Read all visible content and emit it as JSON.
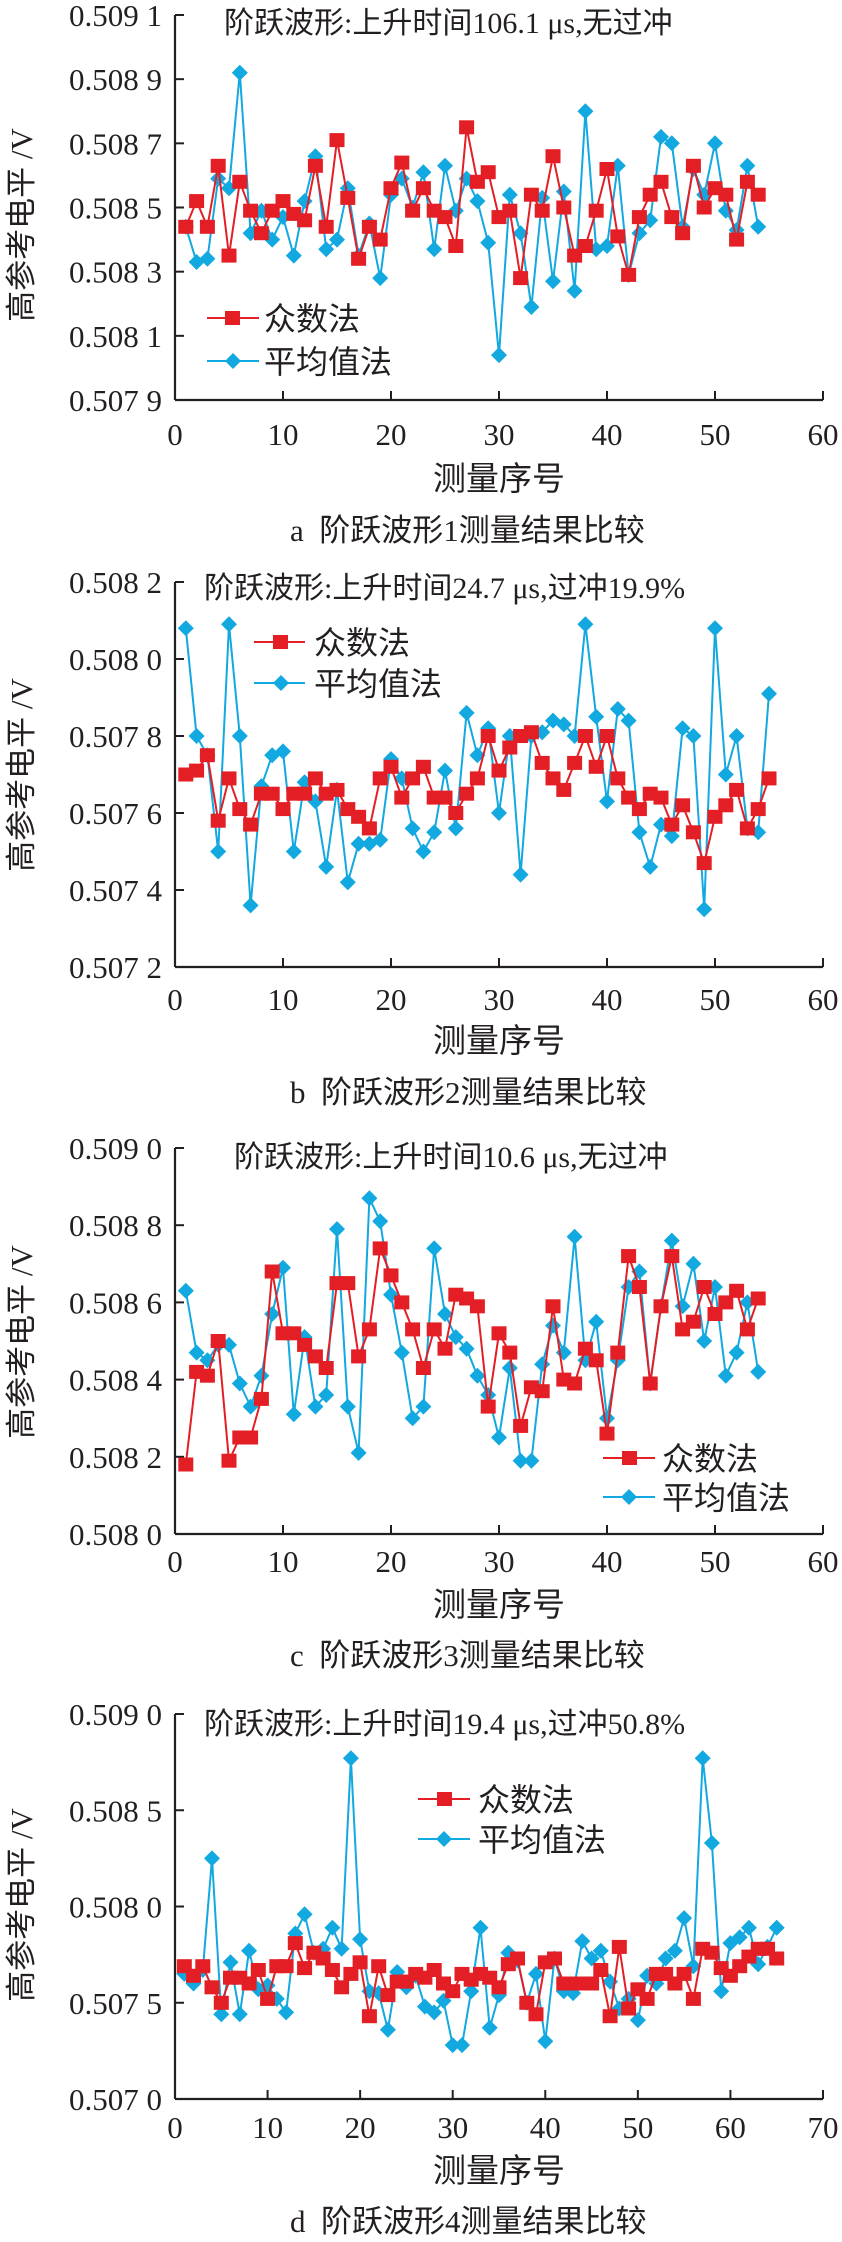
{
  "colors": {
    "mode_method": "#e31e24",
    "mean_method": "#12a8e0",
    "axis": "#231f20"
  },
  "chart_data": [
    {
      "type": "line",
      "panel_caption": "a  阶跃波形1测量结果比较",
      "title": "阶跃波形:上升时间106.1 μs,无过冲",
      "xlabel": "测量序号",
      "ylabel": "高参考电平 /V",
      "xlim": [
        0,
        60
      ],
      "ylim": [
        0.5079,
        0.5091
      ],
      "xticks": [
        0,
        10,
        20,
        30,
        40,
        50,
        60
      ],
      "xtick_labels": [
        "0",
        "10",
        "20",
        "30",
        "40",
        "50",
        "60"
      ],
      "yticks": [
        0.5079,
        0.5081,
        0.5083,
        0.5085,
        0.5087,
        0.5089,
        0.5091
      ],
      "ytick_labels": [
        "0.507 9",
        "0.508 1",
        "0.508 3",
        "0.508 5",
        "0.508 7",
        "0.508 9",
        "0.509 1"
      ],
      "legend_position": "lower-left",
      "grid": false,
      "x_start": 1,
      "series": [
        {
          "name": "众数法",
          "marker": "square",
          "color": "#e31e24",
          "values": [
            0.50844,
            0.50852,
            0.50844,
            0.50863,
            0.50835,
            0.50858,
            0.50849,
            0.50842,
            0.50849,
            0.50852,
            0.50848,
            0.50846,
            0.50863,
            0.50844,
            0.50871,
            0.50853,
            0.50834,
            0.50844,
            0.5084,
            0.50856,
            0.50864,
            0.50849,
            0.50856,
            0.50849,
            0.50847,
            0.50838,
            0.50875,
            0.50858,
            0.50861,
            0.50847,
            0.50849,
            0.50828,
            0.50854,
            0.50849,
            0.50866,
            0.5085,
            0.50835,
            0.50838,
            0.50849,
            0.50862,
            0.50841,
            0.50829,
            0.50847,
            0.50854,
            0.50858,
            0.50847,
            0.50842,
            0.50863,
            0.5085,
            0.50856,
            0.50854,
            0.5084,
            0.50858,
            0.50854
          ]
        },
        {
          "name": "平均值法",
          "marker": "diamond",
          "color": "#12a8e0",
          "values": [
            0.50844,
            0.50833,
            0.50834,
            0.50859,
            0.50856,
            0.50892,
            0.50842,
            0.50849,
            0.5084,
            0.50847,
            0.50835,
            0.50852,
            0.50866,
            0.50837,
            0.5084,
            0.50856,
            0.50835,
            0.50845,
            0.50828,
            0.50854,
            0.50859,
            0.5085,
            0.50861,
            0.50837,
            0.50863,
            0.50849,
            0.50859,
            0.50852,
            0.50839,
            0.50804,
            0.50854,
            0.50842,
            0.50819,
            0.50853,
            0.50827,
            0.50855,
            0.50824,
            0.5088,
            0.50837,
            0.50838,
            0.50863,
            0.50829,
            0.50842,
            0.50846,
            0.50872,
            0.5087,
            0.50844,
            0.50862,
            0.50854,
            0.5087,
            0.50849,
            0.50843,
            0.50863,
            0.50844
          ]
        }
      ]
    },
    {
      "type": "line",
      "panel_caption": "b  阶跃波形2测量结果比较",
      "title": "阶跃波形:上升时间24.7 μs,过冲19.9%",
      "xlabel": "测量序号",
      "ylabel": "高参考电平 /V",
      "xlim": [
        0,
        60
      ],
      "ylim": [
        0.5072,
        0.5082
      ],
      "xticks": [
        0,
        10,
        20,
        30,
        40,
        50,
        60
      ],
      "xtick_labels": [
        "0",
        "10",
        "20",
        "30",
        "40",
        "50",
        "60"
      ],
      "yticks": [
        0.5072,
        0.5074,
        0.5076,
        0.5078,
        0.508,
        0.5082
      ],
      "ytick_labels": [
        "0.507 2",
        "0.507 4",
        "0.507 6",
        "0.507 8",
        "0.508 0",
        "0.508 2"
      ],
      "legend_position": "top-left",
      "grid": false,
      "x_start": 1,
      "series": [
        {
          "name": "众数法",
          "marker": "square",
          "color": "#e31e24",
          "values": [
            0.5077,
            0.50771,
            0.50775,
            0.50758,
            0.50769,
            0.50761,
            0.50757,
            0.50765,
            0.50765,
            0.50761,
            0.50765,
            0.50765,
            0.50769,
            0.50765,
            0.50766,
            0.50761,
            0.50759,
            0.50756,
            0.50769,
            0.50772,
            0.50764,
            0.50769,
            0.50772,
            0.50764,
            0.50764,
            0.5076,
            0.50765,
            0.50769,
            0.5078,
            0.50771,
            0.50777,
            0.5078,
            0.50781,
            0.50773,
            0.50769,
            0.50766,
            0.50773,
            0.5078,
            0.50772,
            0.5078,
            0.50769,
            0.50764,
            0.50761,
            0.50765,
            0.50764,
            0.50757,
            0.50762,
            0.50755,
            0.50747,
            0.50759,
            0.50762,
            0.50766,
            0.50756,
            0.50761,
            0.50769
          ]
        },
        {
          "name": "平均值法",
          "marker": "diamond",
          "color": "#12a8e0",
          "values": [
            0.50808,
            0.5078,
            0.50775,
            0.5075,
            0.50809,
            0.5078,
            0.50736,
            0.50767,
            0.50775,
            0.50776,
            0.5075,
            0.50768,
            0.50763,
            0.50746,
            0.50766,
            0.50742,
            0.50752,
            0.50752,
            0.50753,
            0.50774,
            0.50769,
            0.50756,
            0.5075,
            0.50755,
            0.50771,
            0.50756,
            0.50786,
            0.50775,
            0.50782,
            0.5076,
            0.5078,
            0.50744,
            0.5078,
            0.50781,
            0.50784,
            0.50783,
            0.5078,
            0.50809,
            0.50785,
            0.50763,
            0.50787,
            0.50784,
            0.50755,
            0.50746,
            0.50757,
            0.50754,
            0.50782,
            0.5078,
            0.50735,
            0.50808,
            0.5077,
            0.5078,
            0.50756,
            0.50755,
            0.50791
          ]
        }
      ]
    },
    {
      "type": "line",
      "panel_caption": "c  阶跃波形3测量结果比较",
      "title": "阶跃波形:上升时间10.6 μs,无过冲",
      "xlabel": "测量序号",
      "ylabel": "高参考电平 /V",
      "xlim": [
        0,
        60
      ],
      "ylim": [
        0.508,
        0.509
      ],
      "xticks": [
        0,
        10,
        20,
        30,
        40,
        50,
        60
      ],
      "xtick_labels": [
        "0",
        "10",
        "20",
        "30",
        "40",
        "50",
        "60"
      ],
      "yticks": [
        0.508,
        0.5082,
        0.5084,
        0.5086,
        0.5088,
        0.509
      ],
      "ytick_labels": [
        "0.508 0",
        "0.508 2",
        "0.508 4",
        "0.508 6",
        "0.508 8",
        "0.509 0"
      ],
      "legend_position": "bottom-right",
      "grid": false,
      "x_start": 1,
      "series": [
        {
          "name": "众数法",
          "marker": "square",
          "color": "#e31e24",
          "values": [
            0.50818,
            0.50842,
            0.50841,
            0.5085,
            0.50819,
            0.50825,
            0.50825,
            0.50835,
            0.50868,
            0.50852,
            0.50852,
            0.50849,
            0.50846,
            0.50843,
            0.50865,
            0.50865,
            0.50846,
            0.50853,
            0.50874,
            0.50867,
            0.5086,
            0.50853,
            0.50843,
            0.50853,
            0.50848,
            0.50862,
            0.50861,
            0.50859,
            0.50833,
            0.50852,
            0.50847,
            0.50828,
            0.50838,
            0.50837,
            0.50859,
            0.5084,
            0.50839,
            0.50848,
            0.50845,
            0.50826,
            0.50847,
            0.50872,
            0.50864,
            0.50839,
            0.50859,
            0.50872,
            0.50853,
            0.50855,
            0.50864,
            0.50857,
            0.5086,
            0.50863,
            0.50853,
            0.50861
          ]
        },
        {
          "name": "平均值法",
          "marker": "diamond",
          "color": "#12a8e0",
          "values": [
            0.50863,
            0.50847,
            0.50845,
            0.50849,
            0.50849,
            0.50839,
            0.50833,
            0.50841,
            0.50857,
            0.50869,
            0.50831,
            0.50851,
            0.50833,
            0.50836,
            0.50879,
            0.50833,
            0.50821,
            0.50887,
            0.50881,
            0.50862,
            0.50847,
            0.5083,
            0.50833,
            0.50874,
            0.50857,
            0.50851,
            0.50848,
            0.50841,
            0.50836,
            0.50825,
            0.50843,
            0.50819,
            0.50819,
            0.50844,
            0.50854,
            0.50847,
            0.50877,
            0.50845,
            0.50855,
            0.5083,
            0.50845,
            0.50864,
            0.50868,
            0.50839,
            0.50859,
            0.50876,
            0.50859,
            0.5087,
            0.5085,
            0.50864,
            0.50841,
            0.50847,
            0.5086,
            0.50842
          ]
        }
      ]
    },
    {
      "type": "line",
      "panel_caption": "d  阶跃波形4测量结果比较",
      "title": "阶跃波形:上升时间19.4 μs,过冲50.8%",
      "xlabel": "测量序号",
      "ylabel": "高参考电平 /V",
      "xlim": [
        0,
        70
      ],
      "ylim": [
        0.507,
        0.509
      ],
      "xticks": [
        0,
        10,
        20,
        30,
        40,
        50,
        60,
        70
      ],
      "xtick_labels": [
        "0",
        "10",
        "20",
        "30",
        "40",
        "50",
        "60",
        "70"
      ],
      "yticks": [
        0.507,
        0.5075,
        0.508,
        0.5085,
        0.509
      ],
      "ytick_labels": [
        "0.507 0",
        "0.507 5",
        "0.508 0",
        "0.508 5",
        "0.509 0"
      ],
      "legend_position": "top-center",
      "grid": false,
      "x_start": 1,
      "series": [
        {
          "name": "众数法",
          "marker": "square",
          "color": "#e31e24",
          "values": [
            0.50769,
            0.50764,
            0.50769,
            0.50758,
            0.5075,
            0.50763,
            0.50763,
            0.5076,
            0.50767,
            0.50752,
            0.50769,
            0.50769,
            0.50781,
            0.50768,
            0.50776,
            0.50773,
            0.50767,
            0.50758,
            0.50765,
            0.50771,
            0.50743,
            0.50769,
            0.50754,
            0.50761,
            0.50761,
            0.50765,
            0.50763,
            0.50767,
            0.5076,
            0.50756,
            0.50765,
            0.50762,
            0.50765,
            0.50763,
            0.50758,
            0.5077,
            0.50773,
            0.5075,
            0.50744,
            0.50771,
            0.50773,
            0.5076,
            0.5076,
            0.5076,
            0.5076,
            0.50767,
            0.50743,
            0.50779,
            0.50747,
            0.50757,
            0.50752,
            0.50765,
            0.50765,
            0.5076,
            0.50765,
            0.50752,
            0.50778,
            0.50776,
            0.50768,
            0.50764,
            0.50769,
            0.50774,
            0.50778,
            0.50778,
            0.50773
          ]
        },
        {
          "name": "平均值法",
          "marker": "diamond",
          "color": "#12a8e0",
          "values": [
            0.50765,
            0.5076,
            0.50767,
            0.50825,
            0.50744,
            0.50771,
            0.50744,
            0.50777,
            0.50757,
            0.50759,
            0.50752,
            0.50745,
            0.50786,
            0.50796,
            0.50776,
            0.50778,
            0.50789,
            0.50778,
            0.50877,
            0.50783,
            0.50756,
            0.50755,
            0.50736,
            0.50766,
            0.50758,
            0.50764,
            0.50748,
            0.50745,
            0.50751,
            0.50728,
            0.50728,
            0.50756,
            0.50789,
            0.50737,
            0.50754,
            0.50776,
            0.50772,
            0.5075,
            0.50765,
            0.5073,
            0.50773,
            0.50756,
            0.50755,
            0.50782,
            0.50773,
            0.50777,
            0.50761,
            0.50747,
            0.50752,
            0.50741,
            0.50764,
            0.5076,
            0.50773,
            0.50777,
            0.50794,
            0.50769,
            0.50877,
            0.50833,
            0.50756,
            0.50781,
            0.50784,
            0.50789,
            0.5077,
            0.50779,
            0.50789
          ]
        }
      ]
    }
  ]
}
